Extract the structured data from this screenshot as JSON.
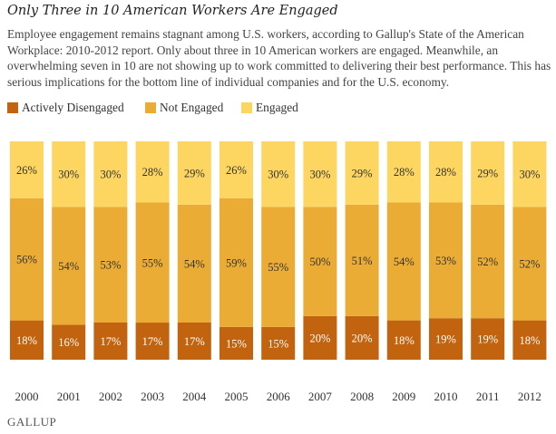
{
  "header": {
    "title": "Only Three in 10 American Workers Are Engaged",
    "subtitle": "Employee engagement remains stagnant among U.S. workers, according to Gallup's State of the American Workplace: 2010-2012 report. Only about three in 10 American workers are engaged. Meanwhile, an overwhelming seven in 10 are not showing up to work committed to delivering their best performance. This has serious implications for the bottom line of individual companies and for the U.S. economy."
  },
  "footer": {
    "brand": "GALLUP"
  },
  "colors": {
    "actively_disengaged": "#c2640f",
    "not_engaged": "#eaac35",
    "engaged": "#fdd661"
  },
  "chart_data": {
    "type": "bar",
    "stacked": true,
    "categories": [
      "2000",
      "2001",
      "2002",
      "2003",
      "2004",
      "2005",
      "2006",
      "2007",
      "2008",
      "2009",
      "2010",
      "2011",
      "2012"
    ],
    "series": [
      {
        "name": "Actively Disengaged",
        "values": [
          18,
          16,
          17,
          17,
          17,
          15,
          15,
          20,
          20,
          18,
          19,
          19,
          18
        ]
      },
      {
        "name": "Not Engaged",
        "values": [
          56,
          54,
          53,
          55,
          54,
          59,
          55,
          50,
          51,
          54,
          53,
          52,
          52
        ]
      },
      {
        "name": "Engaged",
        "values": [
          26,
          30,
          30,
          28,
          29,
          26,
          30,
          30,
          29,
          28,
          28,
          29,
          30
        ]
      }
    ],
    "value_suffix": "%",
    "ylim": [
      0,
      100
    ],
    "legend_position": "top-left",
    "grid": false
  }
}
